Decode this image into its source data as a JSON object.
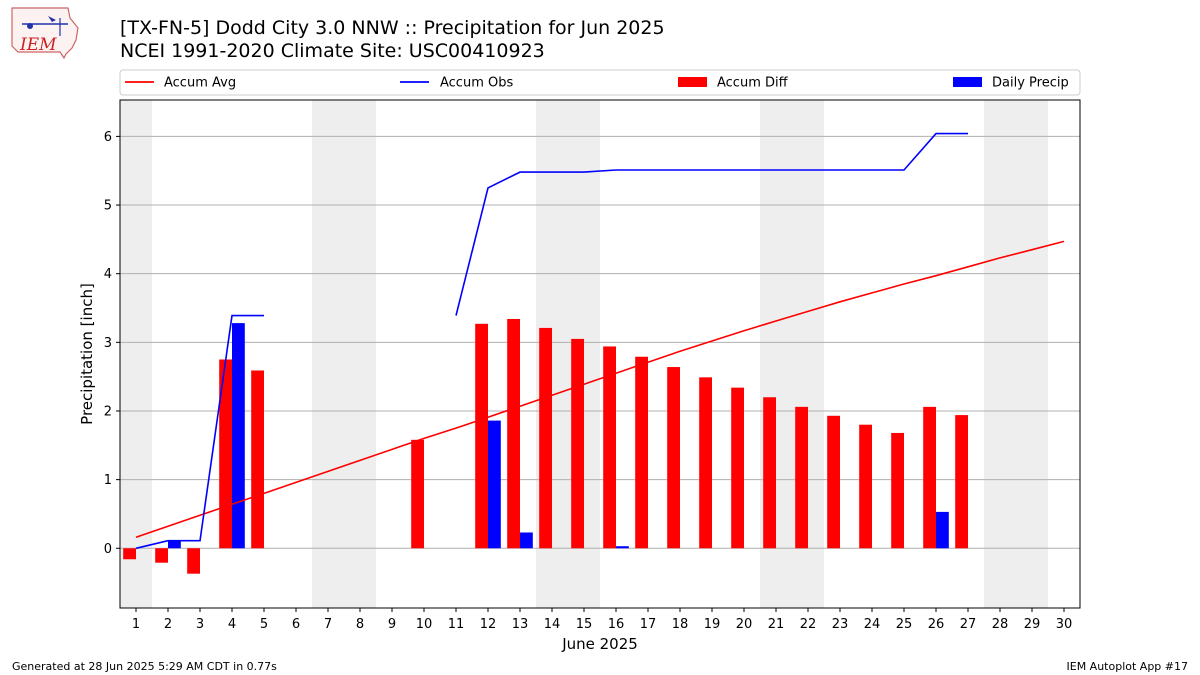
{
  "header": {
    "title_line1": "[TX-FN-5] Dodd City 3.0 NNW :: Precipitation for Jun 2025",
    "title_line2": "NCEI 1991-2020 Climate Site: USC00410923",
    "logo_text": "IEM"
  },
  "footer": {
    "left": "Generated at 28 Jun 2025 5:29 AM CDT in 0.77s",
    "right": "IEM Autoplot App #17"
  },
  "colors": {
    "avg": "#ff0000",
    "obs": "#0000ff",
    "diff": "#ff0000",
    "daily": "#0000ff",
    "weekend": "#eeeeee",
    "grid": "#b0b0b0"
  },
  "chart_data": {
    "type": "bar",
    "xlabel": "June 2025",
    "ylabel": "Precipitation [inch]",
    "xlim": [
      0.5,
      30.5
    ],
    "ylim": [
      -0.87,
      6.53
    ],
    "yticks": [
      0,
      1,
      2,
      3,
      4,
      5,
      6
    ],
    "grid": "y",
    "legend_placement": "top",
    "legend": [
      {
        "name": "Accum Avg",
        "kind": "line",
        "color": "#ff0000"
      },
      {
        "name": "Accum Obs",
        "kind": "line",
        "color": "#0000ff"
      },
      {
        "name": "Accum Diff",
        "kind": "bar",
        "color": "#ff0000"
      },
      {
        "name": "Daily Precip",
        "kind": "bar",
        "color": "#0000ff"
      }
    ],
    "days": [
      1,
      2,
      3,
      4,
      5,
      6,
      7,
      8,
      9,
      10,
      11,
      12,
      13,
      14,
      15,
      16,
      17,
      18,
      19,
      20,
      21,
      22,
      23,
      24,
      25,
      26,
      27,
      28,
      29,
      30
    ],
    "weekend_ranges": [
      [
        0.5,
        1.5
      ],
      [
        6.5,
        8.5
      ],
      [
        13.5,
        15.5
      ],
      [
        20.5,
        22.5
      ],
      [
        27.5,
        29.5
      ]
    ],
    "accum_avg": [
      0.16,
      0.32,
      0.48,
      0.64,
      0.8,
      0.96,
      1.12,
      1.28,
      1.44,
      1.6,
      1.75,
      1.91,
      2.07,
      2.23,
      2.39,
      2.55,
      2.71,
      2.87,
      3.02,
      3.17,
      3.31,
      3.45,
      3.59,
      3.72,
      3.85,
      3.97,
      4.1,
      4.23,
      4.35,
      4.47
    ],
    "accum_obs": [
      0.0,
      0.11,
      0.11,
      3.39,
      3.39,
      null,
      null,
      null,
      null,
      null,
      3.39,
      5.25,
      5.48,
      5.48,
      5.48,
      5.51,
      5.51,
      5.51,
      5.51,
      5.51,
      5.51,
      5.51,
      5.51,
      5.51,
      5.51,
      6.04,
      6.04,
      null,
      null,
      null
    ],
    "accum_diff": [
      -0.16,
      -0.21,
      -0.37,
      2.75,
      2.59,
      null,
      null,
      null,
      null,
      1.58,
      null,
      3.27,
      3.34,
      3.21,
      3.05,
      2.94,
      2.79,
      2.64,
      2.49,
      2.34,
      2.2,
      2.06,
      1.93,
      1.8,
      1.68,
      2.06,
      1.94,
      null,
      null,
      null
    ],
    "daily_precip": [
      0.0,
      0.11,
      0.0,
      3.28,
      0.0,
      null,
      null,
      null,
      null,
      null,
      null,
      1.86,
      0.23,
      0.0,
      0.0,
      0.03,
      0.0,
      0.0,
      0.0,
      0.0,
      0.0,
      0.0,
      0.0,
      0.0,
      0.0,
      0.53,
      0.0,
      null,
      null,
      null
    ]
  }
}
